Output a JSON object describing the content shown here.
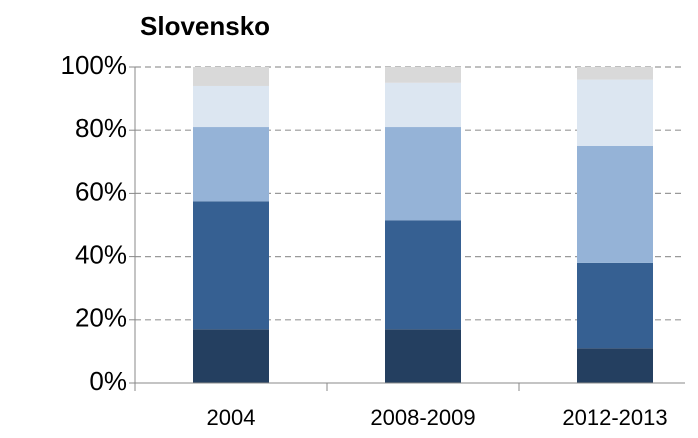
{
  "chart_data": {
    "type": "bar",
    "stacked": true,
    "title": "Slovensko",
    "categories": [
      "2004",
      "2008-2009",
      "2012-2013"
    ],
    "series": [
      {
        "color": "#243f60",
        "values": [
          17,
          17,
          11
        ]
      },
      {
        "color": "#366092",
        "values": [
          40.5,
          34.5,
          27
        ]
      },
      {
        "color": "#95b3d7",
        "values": [
          23.5,
          29.5,
          37
        ]
      },
      {
        "color": "#dce6f1",
        "values": [
          13,
          14,
          21
        ]
      },
      {
        "color": "#d9d9d9",
        "values": [
          6,
          5,
          4
        ]
      }
    ],
    "ylim": [
      0,
      100
    ],
    "yticks": [
      {
        "value": 0,
        "label": "0%"
      },
      {
        "value": 20,
        "label": "20%"
      },
      {
        "value": 40,
        "label": "40%"
      },
      {
        "value": 60,
        "label": "60%"
      },
      {
        "value": 80,
        "label": "80%"
      },
      {
        "value": 100,
        "label": "100%"
      }
    ],
    "grid": true
  }
}
